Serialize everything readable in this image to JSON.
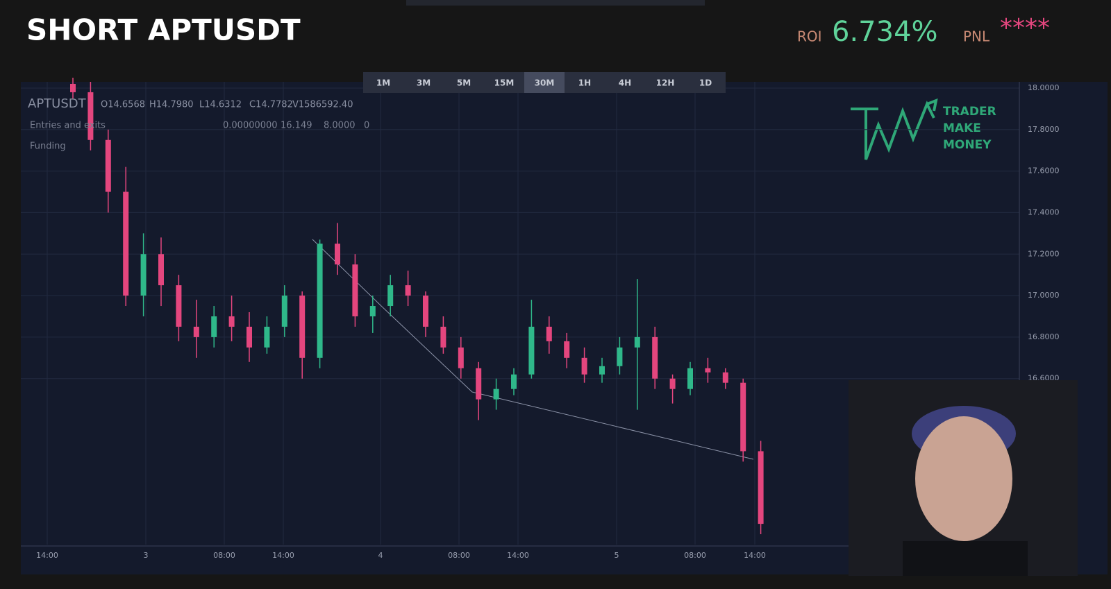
{
  "header": {
    "title": "SHORT APTUSDT",
    "roi_label": "ROI",
    "roi_value": "6.734%",
    "pnl_label": "PNL",
    "pnl_value": "****"
  },
  "timeframes": [
    "1M",
    "3M",
    "5M",
    "15M",
    "30M",
    "1H",
    "4H",
    "12H",
    "1D"
  ],
  "logo": [
    "TRADER",
    "MAKE",
    "MONEY"
  ],
  "chart_data": {
    "type": "candlestick",
    "symbol": "APTUSDT",
    "legend": [
      "O14.6568",
      "H14.7980",
      "L14.6312",
      "C14.7782",
      "V1586592.40"
    ],
    "indicators": [
      {
        "name": "Entries and exits",
        "values": [
          "0.00000000",
          "16.149",
          "8.0000",
          "0"
        ]
      },
      {
        "name": "Funding",
        "values": []
      }
    ],
    "up_color": "#2fb88a",
    "down_color": "#e4467e",
    "open": [
      18.02,
      17.98,
      17.75,
      17.5,
      17.0,
      17.2,
      17.05,
      16.85,
      16.8,
      16.9,
      16.85,
      16.75,
      16.85,
      17.0,
      16.7,
      17.25,
      17.15,
      16.9,
      16.95,
      17.05,
      17.0,
      16.85,
      16.75,
      16.65,
      16.5,
      16.55,
      16.62,
      16.85,
      16.78,
      16.7,
      16.62,
      16.66,
      16.75,
      16.8,
      16.6,
      16.55,
      16.65,
      16.63,
      16.58,
      16.25
    ],
    "high": [
      18.05,
      18.03,
      17.8,
      17.62,
      17.3,
      17.28,
      17.1,
      16.98,
      16.95,
      17.0,
      16.92,
      16.9,
      17.05,
      17.02,
      17.27,
      17.35,
      17.2,
      17.0,
      17.1,
      17.12,
      17.02,
      16.9,
      16.8,
      16.68,
      16.6,
      16.65,
      16.98,
      16.9,
      16.82,
      16.75,
      16.7,
      16.8,
      17.08,
      16.85,
      16.62,
      16.68,
      16.7,
      16.65,
      16.6,
      16.3
    ],
    "low": [
      17.95,
      17.7,
      17.4,
      16.95,
      16.9,
      16.95,
      16.78,
      16.7,
      16.75,
      16.78,
      16.68,
      16.72,
      16.8,
      16.6,
      16.65,
      17.1,
      16.85,
      16.82,
      16.9,
      16.95,
      16.8,
      16.72,
      16.6,
      16.4,
      16.45,
      16.52,
      16.6,
      16.72,
      16.65,
      16.58,
      16.58,
      16.62,
      16.45,
      16.55,
      16.48,
      16.52,
      16.58,
      16.55,
      16.2,
      15.85
    ],
    "close": [
      17.98,
      17.75,
      17.5,
      17.0,
      17.2,
      17.05,
      16.85,
      16.8,
      16.9,
      16.85,
      16.75,
      16.85,
      17.0,
      16.7,
      17.25,
      17.15,
      16.9,
      16.95,
      17.05,
      17.0,
      16.85,
      16.75,
      16.65,
      16.5,
      16.55,
      16.62,
      16.85,
      16.78,
      16.7,
      16.62,
      16.66,
      16.75,
      16.8,
      16.6,
      16.55,
      16.65,
      16.63,
      16.58,
      16.25,
      15.9
    ],
    "ylim": [
      15.8,
      18.03
    ],
    "yticks": [
      {
        "value": 16.6,
        "label": "16.6000"
      },
      {
        "value": 16.8,
        "label": "16.8000"
      },
      {
        "value": 17.0,
        "label": "17.0000"
      },
      {
        "value": 17.2,
        "label": "17.2000"
      },
      {
        "value": 17.4,
        "label": "17.4000"
      },
      {
        "value": 17.6,
        "label": "17.6000"
      },
      {
        "value": 17.8,
        "label": "17.8000"
      },
      {
        "value": 18.0,
        "label": "18.0000"
      }
    ],
    "xtick_labels": [
      "14:00",
      "3",
      "08:00",
      "14:00",
      "4",
      "08:00",
      "14:00",
      "5",
      "08:00",
      "14:00"
    ],
    "grid": true
  }
}
